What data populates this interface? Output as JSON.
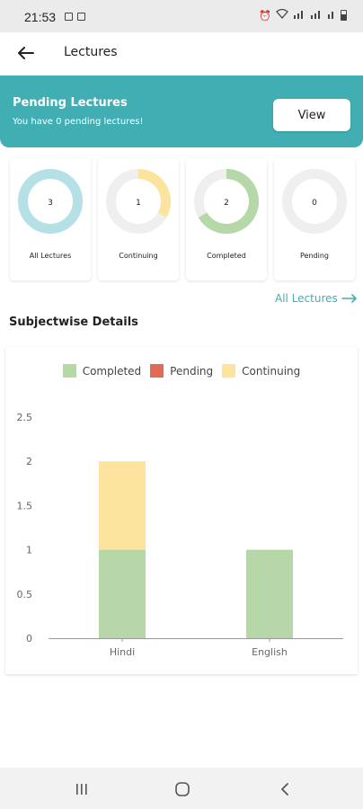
{
  "status_bar": {
    "time": "21:53"
  },
  "app_bar": {
    "title": "Lectures"
  },
  "pending_card": {
    "title": "Pending Lectures",
    "message": "You have 0 pending lectures!",
    "button_label": "View"
  },
  "stats": [
    {
      "label": "All Lectures",
      "value": "3",
      "fraction": 1.0,
      "color": "#b5e1e6"
    },
    {
      "label": "Continuing",
      "value": "1",
      "fraction": 0.3333,
      "color": "#fde49e"
    },
    {
      "label": "Completed",
      "value": "2",
      "fraction": 0.6667,
      "color": "#b6d7a8"
    },
    {
      "label": "Pending",
      "value": "0",
      "fraction": 0.0,
      "color": "#e06c56"
    }
  ],
  "all_lectures_link": "All Lectures",
  "section_title": "Subjectwise Details",
  "chart_data": {
    "type": "bar",
    "stacked": true,
    "categories": [
      "Hindi",
      "English"
    ],
    "series": [
      {
        "name": "Completed",
        "values": [
          1,
          1
        ],
        "color": "#b6d7a8"
      },
      {
        "name": "Pending",
        "values": [
          0,
          0
        ],
        "color": "#e06c56"
      },
      {
        "name": "Continuing",
        "values": [
          1,
          0
        ],
        "color": "#fde49e"
      }
    ],
    "yticks": [
      "0",
      "0.5",
      "1",
      "1.5",
      "2",
      "2.5"
    ],
    "ylim": [
      0,
      2.5
    ],
    "legend": "top"
  }
}
